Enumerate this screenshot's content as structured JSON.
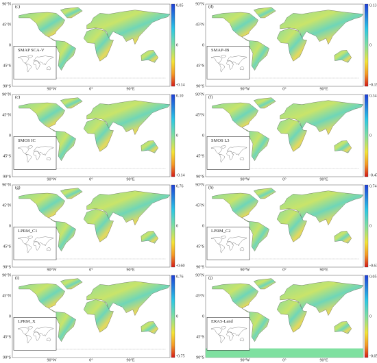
{
  "lat_labels": [
    "90°N",
    "45°N",
    "0",
    "45°S",
    "90°S"
  ],
  "lon_labels": [
    "90°W",
    "0°",
    "90°E"
  ],
  "panels": [
    {
      "label": "(c)",
      "product": "SMAP SCA-V",
      "colorbar": {
        "max": "0.05",
        "mid": "0",
        "min": "-0.14"
      }
    },
    {
      "label": "(d)",
      "product": "SMAP-IB",
      "colorbar": {
        "max": "0.13",
        "mid": "0",
        "min": "-0.15"
      }
    },
    {
      "label": "(e)",
      "product": "SMOS IC",
      "colorbar": {
        "max": "0.10",
        "mid": "0",
        "min": "-0.14"
      }
    },
    {
      "label": "(f)",
      "product": "SMOS L3",
      "colorbar": {
        "max": "0.34",
        "mid": "0",
        "min": "-0.47"
      }
    },
    {
      "label": "(g)",
      "product": "LPRM_C1",
      "colorbar": {
        "max": "0.76",
        "mid": "0",
        "min": "-0.60"
      }
    },
    {
      "label": "(h)",
      "product": "LPRM_C2",
      "colorbar": {
        "max": "0.74",
        "mid": "0",
        "min": "-0.63"
      }
    },
    {
      "label": "(i)",
      "product": "LPRM_X",
      "colorbar": {
        "max": "0.76",
        "mid": "0",
        "min": "-0.75"
      }
    },
    {
      "label": "(j)",
      "product": "ERA5-Land",
      "colorbar": {
        "max": "0.05",
        "mid": "0",
        "min": "-0.05"
      }
    }
  ]
}
